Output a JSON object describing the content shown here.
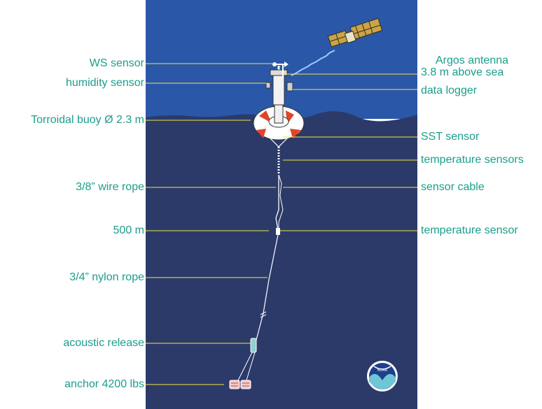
{
  "left_labels": [
    {
      "id": "ws-sensor",
      "text": "WS sensor"
    },
    {
      "id": "humidity-sensor",
      "text": "humidity sensor"
    },
    {
      "id": "torroidal-buoy",
      "text": "Torroidal buoy  Ø 2.3 m"
    },
    {
      "id": "wire-rope",
      "text": "3/8” wire rope"
    },
    {
      "id": "depth-500",
      "text": "500 m"
    },
    {
      "id": "nylon-rope",
      "text": "3/4” nylon rope"
    },
    {
      "id": "acoustic-release",
      "text": "acoustic release"
    },
    {
      "id": "anchor",
      "text": "anchor 4200 lbs"
    }
  ],
  "right_labels": [
    {
      "id": "argos-antenna-1",
      "text": "Argos antenna"
    },
    {
      "id": "argos-antenna-2",
      "text": "3.8 m above sea"
    },
    {
      "id": "data-logger",
      "text": "data logger"
    },
    {
      "id": "sst-sensor",
      "text": "SST sensor"
    },
    {
      "id": "temperature-sensors",
      "text": "temperature sensors"
    },
    {
      "id": "sensor-cable",
      "text": "sensor cable"
    },
    {
      "id": "temperature-sensor",
      "text": "temperature sensor"
    }
  ],
  "logo": {
    "text": "NOAA"
  },
  "colors": {
    "sky": "#2a57a8",
    "sea": "#2c3a6a",
    "label": "#1a9e8c",
    "leader": "#f2e640",
    "buoy_stripe": "#e0452a"
  }
}
